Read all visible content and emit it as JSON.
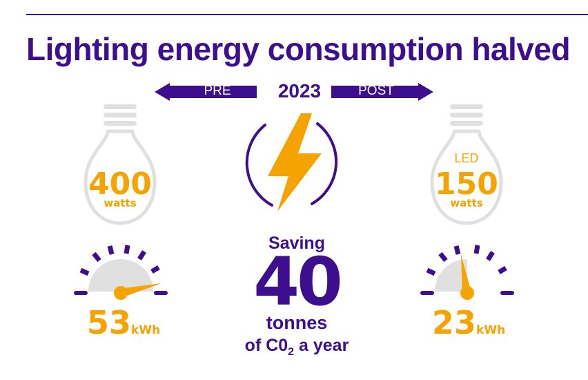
{
  "title": "Lighting energy consumption halved",
  "timeline": {
    "pre_label": "PRE",
    "year": "2023",
    "post_label": "POST"
  },
  "left_bulb": {
    "value": "400",
    "unit": "watts"
  },
  "right_bulb": {
    "type_label": "LED",
    "value": "150",
    "unit": "watts"
  },
  "left_meter": {
    "value": "53",
    "unit": "kWh"
  },
  "right_meter": {
    "value": "23",
    "unit": "kWh"
  },
  "saving": {
    "label": "Saving",
    "value": "40",
    "unit_line": "tonnes",
    "suffix_pre": "of C0",
    "subscript": "2",
    "suffix_post": " a year"
  },
  "icons": [
    "lightning-bolt-icon",
    "light-bulb-icon",
    "gauge-icon",
    "arrow-left-icon",
    "arrow-right-icon"
  ],
  "colors": {
    "purple": "#3d0f8f",
    "orange": "#f5a300",
    "grey": "#e0e0e0"
  }
}
